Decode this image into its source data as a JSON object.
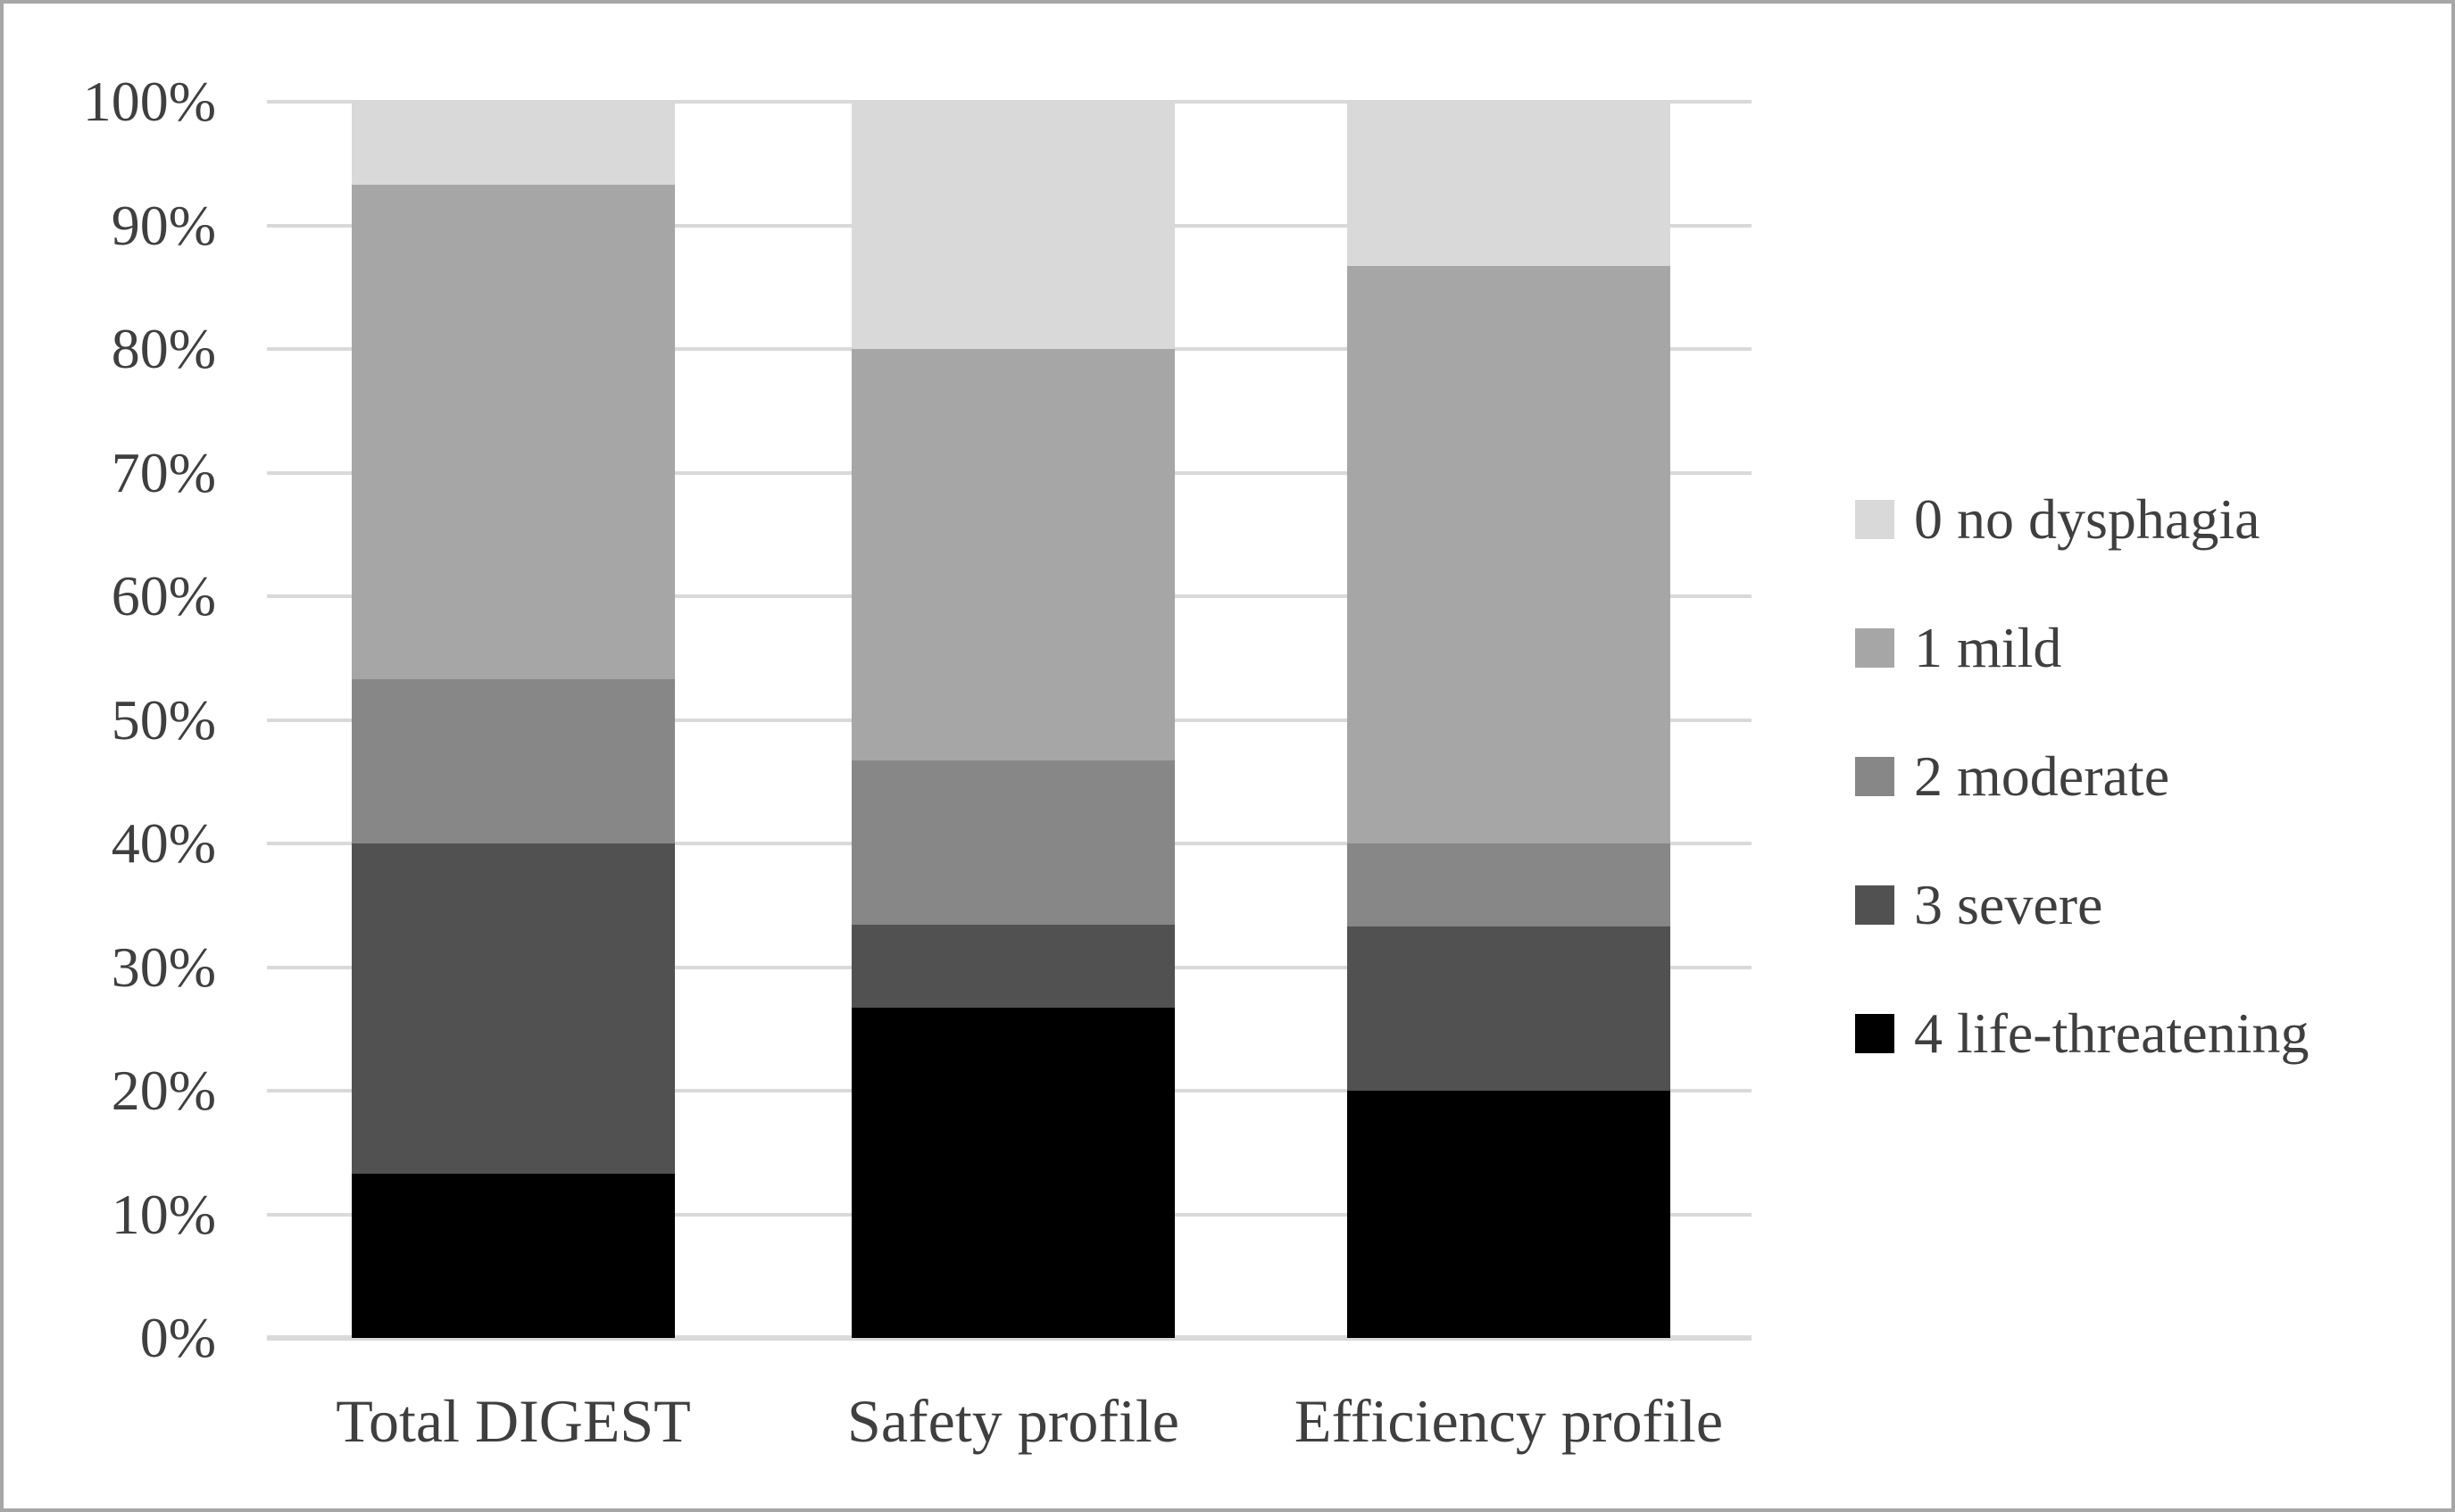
{
  "chart_data": {
    "type": "bar",
    "subtype": "stacked-100-percent",
    "title": "",
    "xlabel": "",
    "ylabel": "",
    "categories": [
      "Total DIGEST",
      "Safety profile",
      "Efficiency profile"
    ],
    "series": [
      {
        "name": "0 no dysphagia",
        "color": "#d9d9d9",
        "values": [
          6.7,
          20.0,
          13.3
        ]
      },
      {
        "name": "1 mild",
        "color": "#a6a6a6",
        "values": [
          40.0,
          33.3,
          46.7
        ]
      },
      {
        "name": "2 moderate",
        "color": "#878787",
        "values": [
          13.3,
          13.3,
          6.7
        ]
      },
      {
        "name": "3 severe",
        "color": "#515151",
        "values": [
          26.7,
          6.7,
          13.3
        ]
      },
      {
        "name": "4 life-threatening",
        "color": "#000000",
        "values": [
          13.3,
          26.7,
          20.0
        ]
      }
    ],
    "stack_order_bottom_to_top": [
      "4 life-threatening",
      "3 severe",
      "2 moderate",
      "1 mild",
      "0 no dysphagia"
    ],
    "ylim": [
      0,
      100
    ],
    "ytick_step": 10,
    "ytick_labels": [
      "0%",
      "10%",
      "20%",
      "30%",
      "40%",
      "50%",
      "60%",
      "70%",
      "80%",
      "90%",
      "100%"
    ],
    "grid": true,
    "legend_position": "right",
    "colors": {
      "gridline": "#d9d9d9",
      "axis_line": "#d9d9d9",
      "text": "#3f3f3f",
      "figure_border": "#a6a6a6",
      "background": "#ffffff"
    }
  }
}
